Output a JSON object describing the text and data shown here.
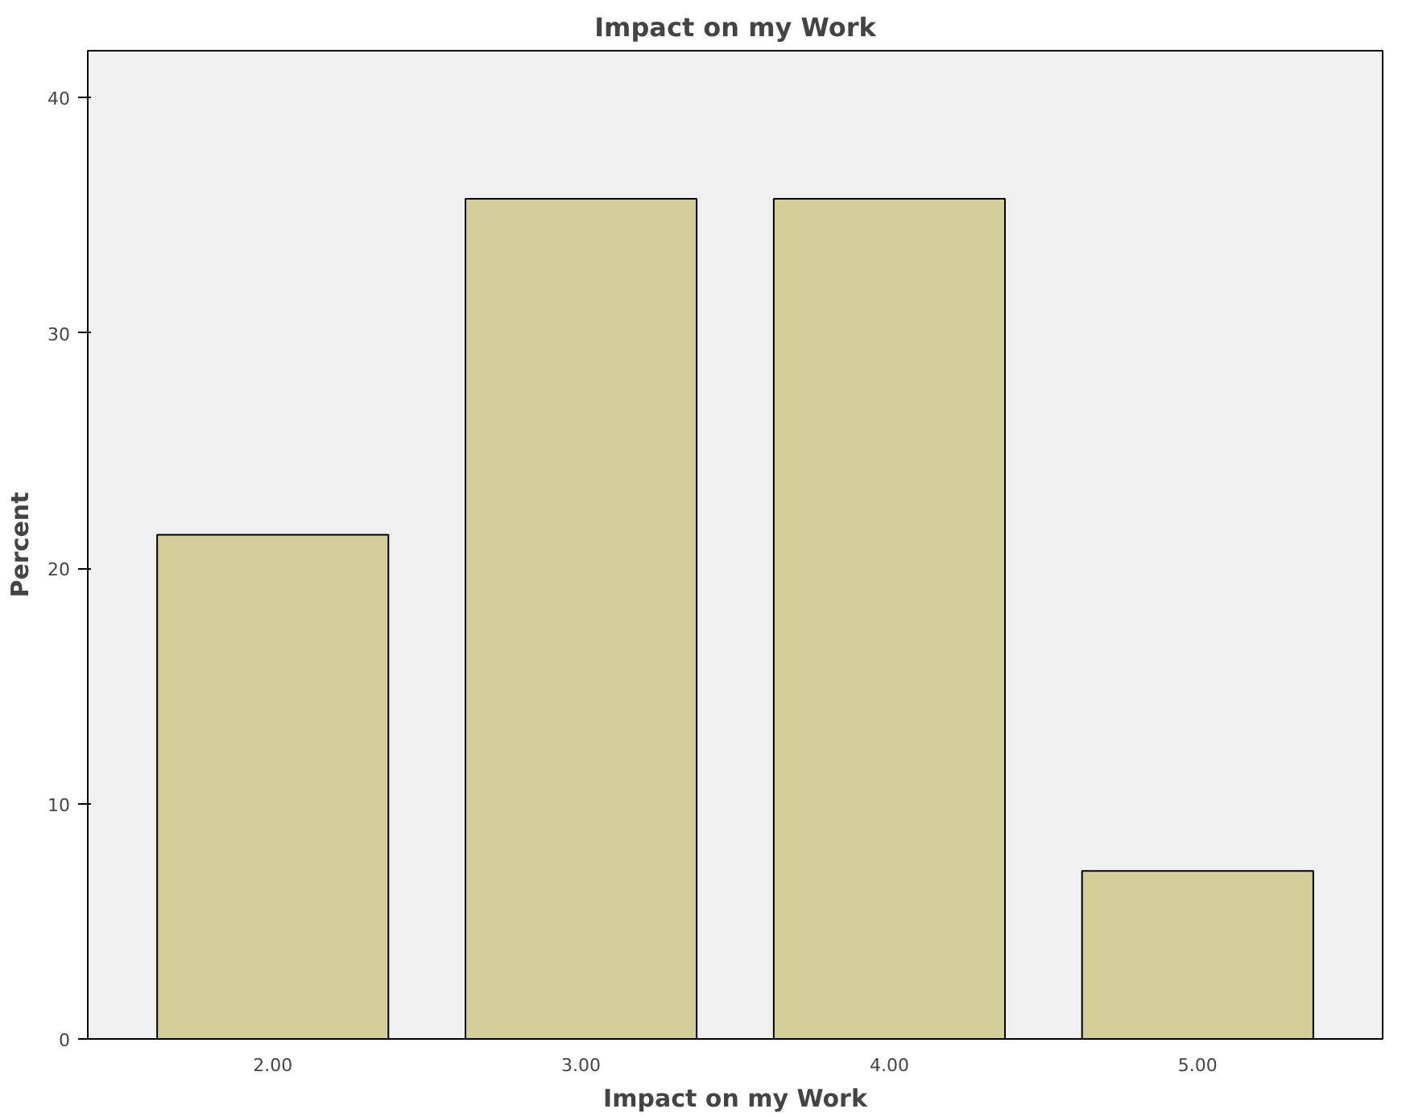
{
  "chart_data": {
    "type": "bar",
    "title": "Impact on my Work",
    "xlabel": "Impact on my Work",
    "ylabel": "Percent",
    "categories": [
      "2.00",
      "3.00",
      "4.00",
      "5.00"
    ],
    "values": [
      21.43,
      35.71,
      35.71,
      7.14
    ],
    "color": "#d3ce97",
    "ylim": [
      0,
      42
    ],
    "yticks": [
      0,
      10,
      20,
      30,
      40
    ],
    "grid": false
  }
}
